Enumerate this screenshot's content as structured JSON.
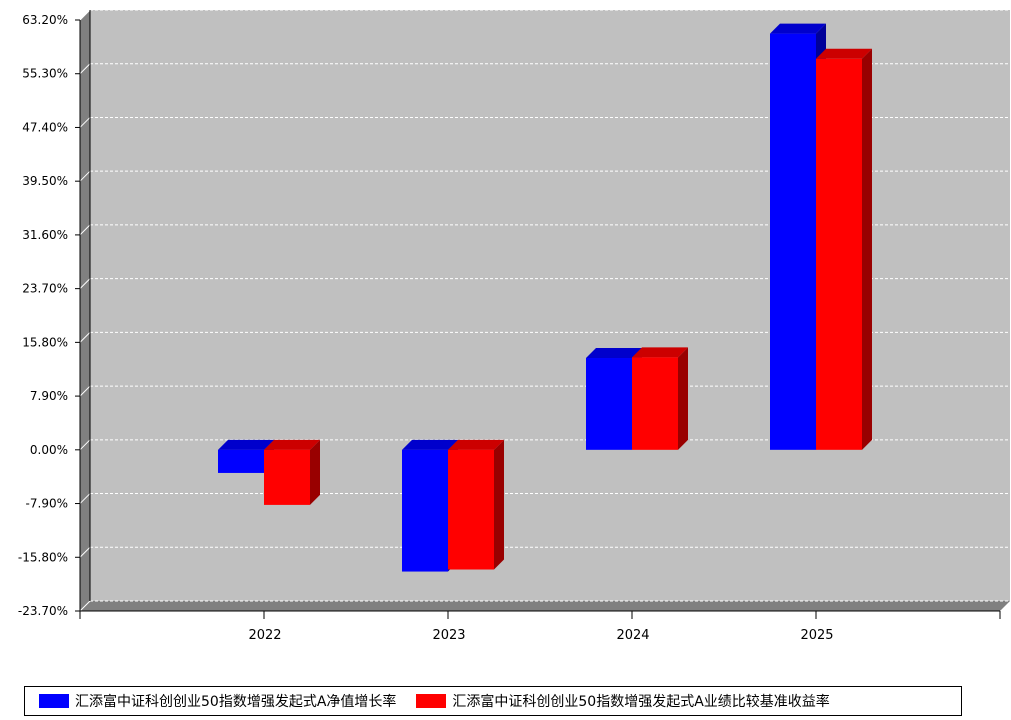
{
  "chart_data": {
    "type": "bar",
    "categories": [
      "2022",
      "2023",
      "2024",
      "2025"
    ],
    "series": [
      {
        "name": "汇添富中证科创创业50指数增强发起式A净值增长率",
        "color": "#0000ff",
        "values": [
          -3.4,
          -17.9,
          13.5,
          61.2
        ]
      },
      {
        "name": "汇添富中证科创创业50指数增强发起式A业绩比较基准收益率",
        "color": "#ff0000",
        "values": [
          -8.1,
          -17.6,
          13.6,
          57.5
        ]
      }
    ],
    "y_ticks": [
      "63.20%",
      "55.30%",
      "47.40%",
      "39.50%",
      "31.60%",
      "23.70%",
      "15.80%",
      "7.90%",
      "0.00%",
      "-7.90%",
      "-15.80%",
      "-23.70%"
    ],
    "ylim": [
      -23.7,
      63.2
    ],
    "grid": true,
    "legend_position": "bottom",
    "plot_background": "#c0c0c0"
  }
}
